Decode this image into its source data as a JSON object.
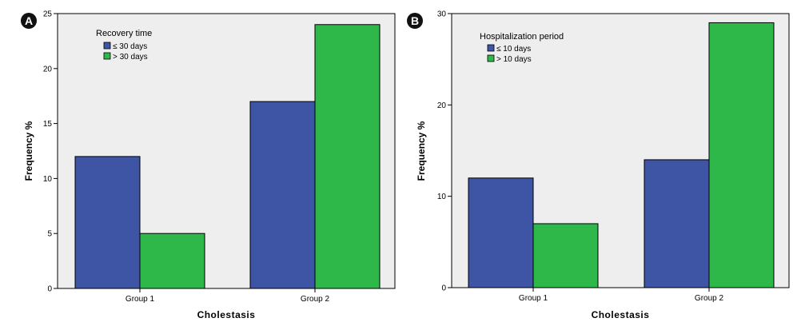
{
  "colors": {
    "series1": "#3e55a6",
    "series2": "#2eb84a",
    "plot_bg": "#eeeeee",
    "frame": "#000000"
  },
  "chart_data": [
    {
      "panel": "A",
      "type": "bar",
      "xlabel": "Cholestasis",
      "ylabel": "Frequency %",
      "categories": [
        "Group 1",
        "Group 2"
      ],
      "ylim": [
        0,
        25
      ],
      "yticks": [
        0,
        5,
        10,
        15,
        20,
        25
      ],
      "legend": {
        "title": "Recovery time",
        "placement": "top-left"
      },
      "series": [
        {
          "name": "≤ 30 days",
          "values": [
            12,
            17
          ]
        },
        {
          "name": "> 30 days",
          "values": [
            5,
            24
          ]
        }
      ],
      "grid": false
    },
    {
      "panel": "B",
      "type": "bar",
      "xlabel": "Cholestasis",
      "ylabel": "Frequency %",
      "categories": [
        "Group 1",
        "Group 2"
      ],
      "ylim": [
        0,
        30
      ],
      "yticks": [
        0,
        10,
        20,
        30
      ],
      "legend": {
        "title": "Hospitalization period",
        "placement": "top-left"
      },
      "series": [
        {
          "name": "≤ 10 days",
          "values": [
            12,
            14
          ]
        },
        {
          "name": "> 10 days",
          "values": [
            7,
            29
          ]
        }
      ],
      "grid": false
    }
  ]
}
